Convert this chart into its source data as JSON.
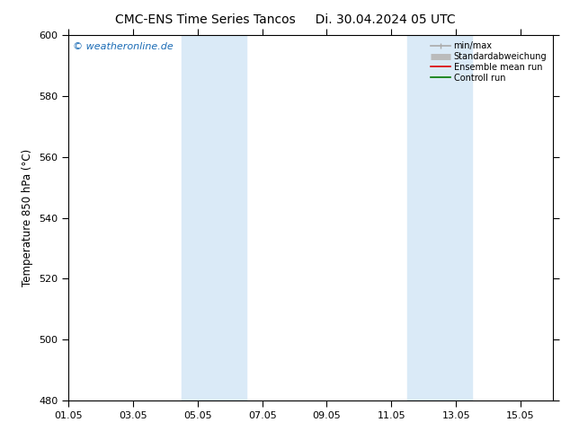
{
  "title_left": "CMC-ENS Time Series Tancos",
  "title_right": "Di. 30.04.2024 05 UTC",
  "ylabel": "Temperature 850 hPa (°C)",
  "ylim": [
    480,
    600
  ],
  "yticks": [
    480,
    500,
    520,
    540,
    560,
    580,
    600
  ],
  "xlim_num": [
    0,
    15
  ],
  "xtick_labels": [
    "01.05",
    "03.05",
    "05.05",
    "07.05",
    "09.05",
    "11.05",
    "13.05",
    "15.05"
  ],
  "xtick_positions": [
    0,
    2,
    4,
    6,
    8,
    10,
    12,
    14
  ],
  "shaded_bands": [
    {
      "xmin": 3.5,
      "xmax": 5.5,
      "color": "#daeaf7"
    },
    {
      "xmin": 10.5,
      "xmax": 12.5,
      "color": "#daeaf7"
    }
  ],
  "watermark": "© weatheronline.de",
  "watermark_color": "#1a6bb5",
  "legend_items": [
    {
      "label": "min/max",
      "color": "#aaaaaa",
      "lw": 1.2
    },
    {
      "label": "Standardabweichung",
      "color": "#bbbbbb",
      "lw": 5
    },
    {
      "label": "Ensemble mean run",
      "color": "#dd0000",
      "lw": 1.2
    },
    {
      "label": "Controll run",
      "color": "#007700",
      "lw": 1.2
    }
  ],
  "bg_color": "#ffffff",
  "spine_color": "#000000",
  "title_fontsize": 10,
  "label_fontsize": 8.5,
  "tick_fontsize": 8
}
